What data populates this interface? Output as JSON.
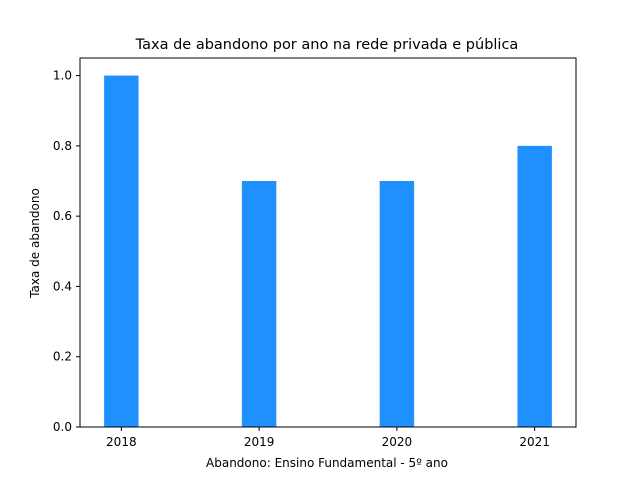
{
  "chart_data": {
    "type": "bar",
    "title": "Taxa de abandono por ano na rede privada e pública",
    "xlabel": "Abandono: Ensino Fundamental - 5º ano",
    "ylabel": "Taxa de abandono",
    "categories": [
      "2018",
      "2019",
      "2020",
      "2021"
    ],
    "values": [
      1.0,
      0.7,
      0.7,
      0.8
    ],
    "ylim": [
      0,
      1.05
    ],
    "yticks": [
      0.0,
      0.2,
      0.4,
      0.6,
      0.8,
      1.0
    ],
    "ytick_labels": [
      "0.0",
      "0.2",
      "0.4",
      "0.6",
      "0.8",
      "1.0"
    ],
    "bar_color": "#1e90ff",
    "grid": false
  }
}
